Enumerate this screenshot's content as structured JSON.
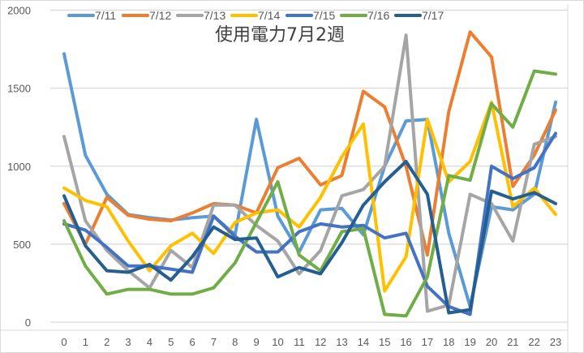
{
  "chart_data": {
    "type": "line",
    "title": "使用電力7月2週",
    "xlabel": "",
    "ylabel": "",
    "x": [
      0,
      1,
      2,
      3,
      4,
      5,
      6,
      7,
      8,
      9,
      10,
      11,
      12,
      13,
      14,
      15,
      16,
      17,
      18,
      19,
      20,
      21,
      22,
      23
    ],
    "ylim": [
      0,
      2000
    ],
    "yticks": [
      0,
      500,
      1000,
      1500,
      2000
    ],
    "grid": true,
    "legend_position": "top",
    "series": [
      {
        "name": "7/11",
        "color": "#5B9BD5",
        "values": [
          1720,
          1070,
          820,
          690,
          670,
          655,
          670,
          680,
          560,
          1300,
          680,
          450,
          720,
          730,
          560,
          1000,
          1290,
          1300,
          570,
          100,
          740,
          720,
          820,
          1410
        ]
      },
      {
        "name": "7/12",
        "color": "#ED7D31",
        "values": [
          760,
          500,
          800,
          685,
          660,
          650,
          700,
          760,
          750,
          700,
          990,
          1050,
          880,
          940,
          1480,
          1380,
          1000,
          430,
          1350,
          1860,
          1700,
          870,
          1070,
          1360
        ]
      },
      {
        "name": "7/13",
        "color": "#A5A5A5",
        "values": [
          1190,
          650,
          460,
          330,
          220,
          460,
          350,
          750,
          750,
          620,
          520,
          310,
          460,
          810,
          850,
          1000,
          1840,
          70,
          110,
          820,
          760,
          520,
          1140,
          1190
        ]
      },
      {
        "name": "7/14",
        "color": "#FFC000",
        "values": [
          860,
          780,
          740,
          520,
          330,
          490,
          570,
          440,
          640,
          700,
          720,
          610,
          800,
          1060,
          1270,
          200,
          420,
          1300,
          900,
          1030,
          1410,
          740,
          860,
          690
        ]
      },
      {
        "name": "7/15",
        "color": "#4472C4",
        "values": [
          630,
          590,
          480,
          360,
          360,
          340,
          320,
          680,
          550,
          450,
          450,
          580,
          630,
          610,
          620,
          540,
          570,
          230,
          100,
          50,
          1000,
          920,
          990,
          1210
        ]
      },
      {
        "name": "7/16",
        "color": "#70AD47",
        "values": [
          650,
          360,
          180,
          210,
          210,
          180,
          180,
          220,
          380,
          640,
          900,
          430,
          330,
          580,
          600,
          50,
          40,
          290,
          940,
          910,
          1400,
          1250,
          1610,
          1590
        ]
      },
      {
        "name": "7/17",
        "color": "#255E91",
        "values": [
          810,
          490,
          330,
          320,
          370,
          270,
          420,
          610,
          530,
          540,
          290,
          350,
          310,
          510,
          750,
          900,
          1030,
          820,
          60,
          80,
          840,
          790,
          830,
          760
        ]
      }
    ]
  },
  "layout": {
    "gridline_color": "#D9D9D9",
    "axis_text_color": "#595959",
    "border_color": "#D9D9D9"
  }
}
